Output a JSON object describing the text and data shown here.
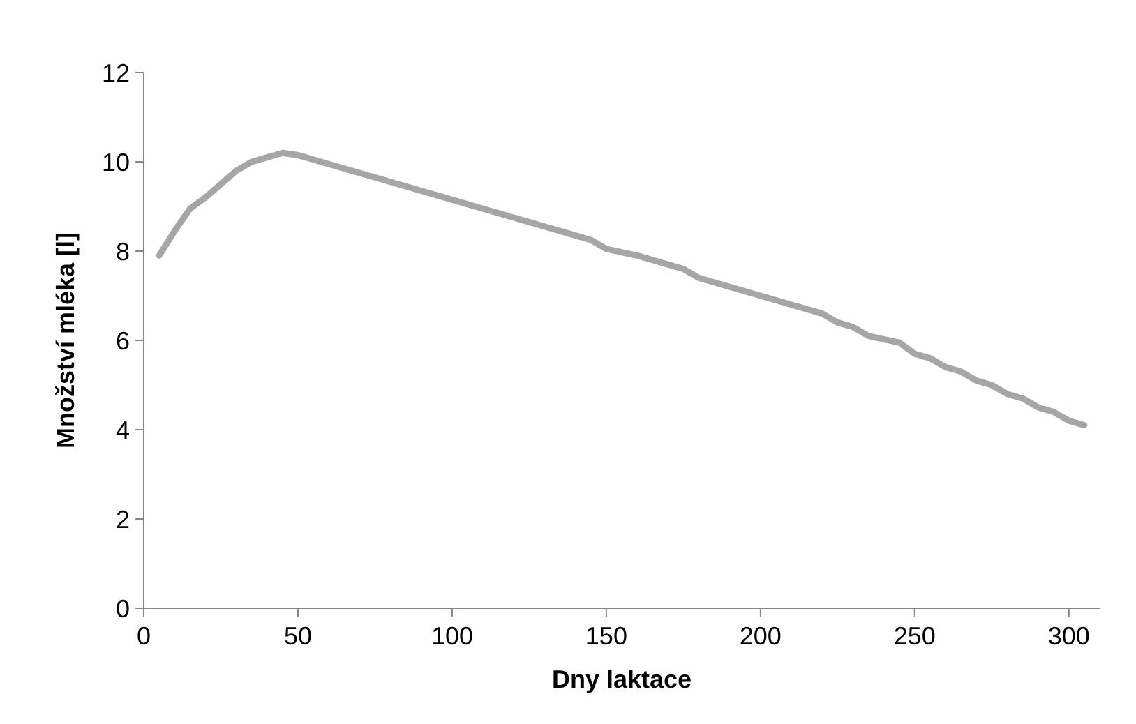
{
  "chart_data": {
    "type": "line",
    "xlabel": "Dny laktace",
    "ylabel": "Množství mléka [l]",
    "x": [
      5,
      10,
      15,
      20,
      25,
      30,
      35,
      40,
      45,
      50,
      60,
      80,
      100,
      120,
      140,
      145,
      150,
      160,
      175,
      180,
      200,
      220,
      225,
      230,
      235,
      245,
      250,
      255,
      260,
      265,
      270,
      275,
      280,
      285,
      290,
      295,
      300,
      305
    ],
    "series": [
      {
        "color": "#a6a6a6",
        "values": [
          7.9,
          8.45,
          8.95,
          9.2,
          9.5,
          9.8,
          10.0,
          10.1,
          10.2,
          10.15,
          9.95,
          9.55,
          9.15,
          8.75,
          8.35,
          8.25,
          8.05,
          7.9,
          7.6,
          7.4,
          7.0,
          6.6,
          6.4,
          6.3,
          6.1,
          5.95,
          5.7,
          5.6,
          5.4,
          5.3,
          5.1,
          5.0,
          4.8,
          4.7,
          4.5,
          4.4,
          4.2,
          4.1
        ]
      }
    ],
    "xlim": [
      0,
      310
    ],
    "xticks": [
      0,
      50,
      100,
      150,
      200,
      250,
      300
    ],
    "ylim": [
      0,
      12
    ],
    "yticks": [
      0,
      2,
      4,
      6,
      8,
      10,
      12
    ],
    "grid": false,
    "marker": "none",
    "line_style": "solid"
  }
}
